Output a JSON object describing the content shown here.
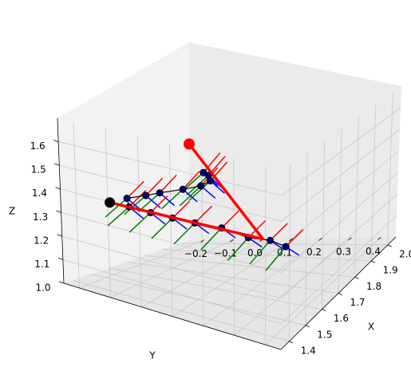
{
  "chart_data": {
    "type": "scatter3d",
    "xlabel": "X",
    "ylabel": "Y",
    "zlabel": "Z",
    "xlim": [
      1.35,
      2.05
    ],
    "ylim": [
      -0.25,
      0.45
    ],
    "zlim": [
      1.0,
      1.7
    ],
    "xticks": [
      "1.4",
      "1.5",
      "1.6",
      "1.7",
      "1.8",
      "1.9",
      "2.0"
    ],
    "yticks": [
      "−0.2",
      "−0.1",
      "0.0",
      "0.1",
      "0.2",
      "0.3",
      "0.4"
    ],
    "zticks": [
      "1.0",
      "1.1",
      "1.2",
      "1.3",
      "1.4",
      "1.5",
      "1.6"
    ],
    "grid": true,
    "colors": {
      "arm": "#ff0000",
      "point": "#000080",
      "path": "#000000",
      "frame_x": "#ff0000",
      "frame_y": "#008000",
      "frame_z": "#0000ff"
    },
    "arm": {
      "base": {
        "x": 2.05,
        "y": -0.25,
        "z": 1.34
      },
      "elbow": {
        "x": 2.05,
        "y": 0.0,
        "z": 1.0
      },
      "tip": {
        "x": 1.43,
        "y": -0.14,
        "z": 1.35
      }
    },
    "points": [
      {
        "x": 1.88,
        "y": -0.1,
        "z": 1.31
      },
      {
        "x": 1.84,
        "y": -0.06,
        "z": 1.32
      },
      {
        "x": 1.8,
        "y": -0.03,
        "z": 1.32
      },
      {
        "x": 1.73,
        "y": -0.02,
        "z": 1.33
      },
      {
        "x": 1.68,
        "y": -0.05,
        "z": 1.33
      },
      {
        "x": 1.62,
        "y": -0.09,
        "z": 1.33
      },
      {
        "x": 1.56,
        "y": -0.1,
        "z": 1.34
      },
      {
        "x": 1.49,
        "y": -0.12,
        "z": 1.35
      },
      {
        "x": 1.45,
        "y": -0.09,
        "z": 1.34
      },
      {
        "x": 1.43,
        "y": -0.01,
        "z": 1.35
      },
      {
        "x": 1.43,
        "y": 0.06,
        "z": 1.35
      },
      {
        "x": 1.45,
        "y": 0.12,
        "z": 1.34
      },
      {
        "x": 1.46,
        "y": 0.2,
        "z": 1.34
      },
      {
        "x": 1.47,
        "y": 0.28,
        "z": 1.32
      },
      {
        "x": 1.47,
        "y": 0.35,
        "z": 1.33
      },
      {
        "x": 1.47,
        "y": 0.4,
        "z": 1.32
      }
    ]
  }
}
